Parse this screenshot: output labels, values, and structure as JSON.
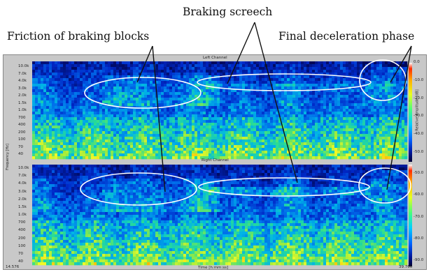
{
  "captions": {
    "friction": "Friction of braking blocks",
    "screech": "Braking screech",
    "final": "Final deceleration phase"
  },
  "panels": {
    "top_title": "Left Channel",
    "bottom_title": "Right Channel"
  },
  "axis": {
    "y_label": "Frequency [Hz]",
    "x_label": "Time [h:mm:ss]",
    "x_start": "14.576",
    "x_end": "39.766",
    "color_label": "Relative Amplitude [dB]",
    "top_freq_ticks": [
      "10.0k",
      "7.0k",
      "4.0k",
      "3.0k",
      "2.0k",
      "1.5k",
      "1.0k",
      "700",
      "400",
      "200",
      "100",
      "70",
      "40"
    ],
    "bottom_freq_ticks": [
      "10.0k",
      "7.0k",
      "4.0k",
      "3.0k",
      "2.0k",
      "1.5k",
      "1.0k",
      "700",
      "400",
      "200",
      "100",
      "70",
      "40"
    ],
    "color_ticks_top": [
      "0.0",
      "-10.0",
      "-20.0",
      "-30.0",
      "-40.0",
      "-50.0"
    ],
    "color_ticks_bottom": [
      "-50.0",
      "-60.0",
      "-70.0",
      "-80.0",
      "-90.0"
    ]
  },
  "colors": {
    "background_frame": "#c8c8c8",
    "ellipse": "#ffffff",
    "pointer": "#111111"
  }
}
